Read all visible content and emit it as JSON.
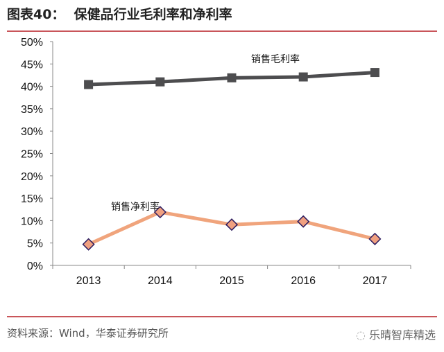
{
  "header": {
    "title": "图表40：  保健品行业毛利率和净利率"
  },
  "footer": {
    "source": "资料来源：Wind，华泰证券研究所",
    "brand": "乐晴智库精选"
  },
  "chart_data": {
    "type": "line",
    "title": "",
    "xlabel": "",
    "ylabel": "",
    "categories": [
      "2013",
      "2014",
      "2015",
      "2016",
      "2017"
    ],
    "ylim": [
      0,
      50
    ],
    "yticks": [
      "0%",
      "5%",
      "10%",
      "15%",
      "20%",
      "25%",
      "30%",
      "35%",
      "40%",
      "45%",
      "50%"
    ],
    "grid": false,
    "legend": "inline labels",
    "series": [
      {
        "name": "销售毛利率",
        "values": [
          40.4,
          41.0,
          41.9,
          42.1,
          43.1
        ],
        "color": "#4d4d4f",
        "marker": "square"
      },
      {
        "name": "销售净利率",
        "values": [
          4.7,
          11.9,
          9.1,
          9.8,
          5.9
        ],
        "color": "#f0a47c",
        "marker": "diamond",
        "marker_fill": "#f0a080",
        "marker_edge": "#2a1a5e"
      }
    ]
  }
}
